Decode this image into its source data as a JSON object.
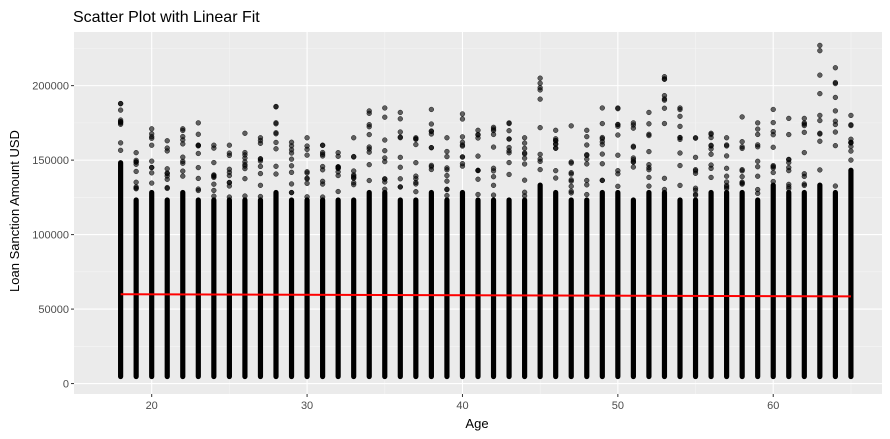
{
  "chart_data": {
    "type": "scatter",
    "title": "Scatter Plot with Linear Fit",
    "xlabel": "Age",
    "ylabel": "Loan Sanction Amount USD",
    "xlim": [
      15,
      67
    ],
    "ylim": [
      -7000,
      236000
    ],
    "xticks": [
      20,
      30,
      40,
      50,
      60
    ],
    "xtick_labels": [
      "20",
      "30",
      "40",
      "50",
      "60"
    ],
    "yticks": [
      0,
      50000,
      100000,
      150000,
      200000
    ],
    "ytick_labels": [
      "0",
      "50000",
      "100000",
      "150000",
      "200000"
    ],
    "grid": true,
    "legend": "none",
    "colors": {
      "panel": "#ebebeb",
      "grid_major": "#ffffff",
      "grid_minor": "#f5f5f5",
      "points": "#000000",
      "fit_line": "#ff0000"
    },
    "series": [
      {
        "kind": "points",
        "x": [
          18,
          19,
          20,
          21,
          22,
          23,
          24,
          25,
          26,
          27,
          28,
          29,
          30,
          31,
          32,
          33,
          34,
          35,
          36,
          37,
          38,
          39,
          40,
          41,
          42,
          43,
          44,
          45,
          46,
          47,
          48,
          49,
          50,
          51,
          52,
          53,
          54,
          55,
          56,
          57,
          58,
          59,
          60,
          61,
          62,
          63,
          64,
          65
        ],
        "y_min": [
          3000,
          3000,
          3000,
          3000,
          3000,
          3000,
          3000,
          3000,
          3000,
          3000,
          3000,
          3000,
          3000,
          3000,
          3000,
          3000,
          3000,
          3000,
          3000,
          3000,
          3000,
          3000,
          3000,
          3000,
          3000,
          3000,
          3000,
          3000,
          3000,
          3000,
          3000,
          3000,
          3000,
          3000,
          3000,
          3000,
          3000,
          3000,
          3000,
          3000,
          3000,
          3000,
          3000,
          3000,
          3000,
          3000,
          3000,
          3000
        ],
        "y_max": [
          188000,
          155000,
          171000,
          163000,
          171000,
          175000,
          160000,
          160000,
          168000,
          165000,
          186000,
          162000,
          165000,
          160000,
          155000,
          165000,
          183000,
          185000,
          182000,
          165000,
          184000,
          165000,
          181000,
          170000,
          172000,
          175000,
          165000,
          205000,
          170000,
          173000,
          170000,
          185000,
          185000,
          175000,
          182000,
          206000,
          185000,
          165000,
          168000,
          165000,
          179000,
          175000,
          184000,
          178000,
          178000,
          227000,
          212000,
          180000
        ],
        "dense_max": [
          150000,
          125000,
          130000,
          125000,
          130000,
          125000,
          125000,
          125000,
          125000,
          125000,
          130000,
          125000,
          125000,
          125000,
          125000,
          125000,
          130000,
          130000,
          125000,
          125000,
          130000,
          125000,
          130000,
          125000,
          125000,
          125000,
          125000,
          135000,
          130000,
          125000,
          125000,
          130000,
          130000,
          125000,
          130000,
          130000,
          125000,
          125000,
          130000,
          130000,
          130000,
          125000,
          135000,
          130000,
          130000,
          135000,
          130000,
          145000
        ]
      },
      {
        "kind": "line",
        "x": [
          18,
          65
        ],
        "y": [
          60000,
          58500
        ]
      }
    ]
  }
}
